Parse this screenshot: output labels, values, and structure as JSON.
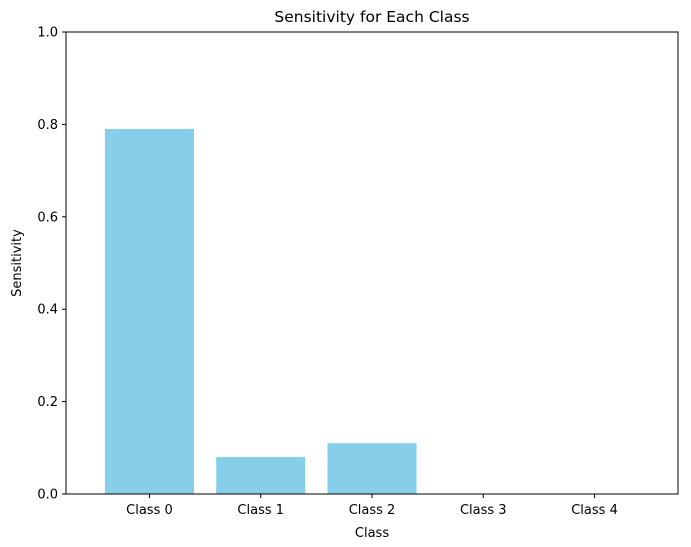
{
  "chart_data": {
    "type": "bar",
    "title": "Sensitivity for Each Class",
    "xlabel": "Class",
    "ylabel": "Sensitivity",
    "categories": [
      "Class 0",
      "Class 1",
      "Class 2",
      "Class 3",
      "Class 4"
    ],
    "values": [
      0.79,
      0.08,
      0.11,
      0.0,
      0.0
    ],
    "ylim": [
      0,
      1.0
    ],
    "yticks": [
      0.0,
      0.2,
      0.4,
      0.6,
      0.8,
      1.0
    ],
    "ytick_labels": [
      "0.0",
      "0.2",
      "0.4",
      "0.6",
      "0.8",
      "1.0"
    ],
    "bar_color": "#87ceeb",
    "grid": false
  }
}
